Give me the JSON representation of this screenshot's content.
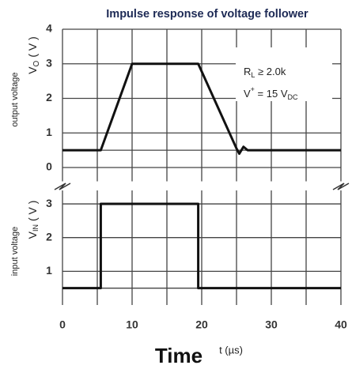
{
  "chart_data": [
    {
      "type": "line",
      "title": "Impulse response of voltage follower",
      "side_label": "output voltage",
      "ylabel": "V",
      "ylabel_sub": "O",
      "ylabel_unit": "( V )",
      "x": [
        0,
        5.5,
        10,
        19.5,
        25,
        25.4,
        26,
        26.6,
        40
      ],
      "series": [
        {
          "name": "output voltage",
          "color": "#111111",
          "values": [
            0.5,
            0.5,
            3,
            3,
            0.55,
            0.4,
            0.6,
            0.5,
            0.5
          ]
        }
      ],
      "xlim": [
        0,
        40
      ],
      "ylim": [
        -0.4,
        4
      ],
      "yticks": [
        0,
        1,
        2,
        3,
        4
      ],
      "yminor": [
        0.5
      ],
      "annotations": [
        {
          "main": "R",
          "sub": "L",
          "rest": " ≥ 2.0k"
        },
        {
          "main": "V",
          "sup": "+",
          "rest": " = 15 V",
          "sub": "DC"
        }
      ],
      "grid": true
    },
    {
      "type": "line",
      "side_label": "input voltage",
      "ylabel": "V",
      "ylabel_sub": "IN",
      "ylabel_unit": "( V )",
      "x": [
        0,
        5.5,
        5.5,
        19.5,
        19.5,
        40
      ],
      "series": [
        {
          "name": "input voltage",
          "color": "#111111",
          "values": [
            0.5,
            0.5,
            3,
            3,
            0.5,
            0.5
          ]
        }
      ],
      "xlim": [
        0,
        40
      ],
      "ylim": [
        0,
        3.4
      ],
      "yticks": [
        1,
        2,
        3
      ],
      "yminor": [
        0.5
      ],
      "xticks": [
        0,
        10,
        20,
        30,
        40
      ],
      "xminor": [
        5,
        15,
        25,
        35
      ],
      "xlabel": "Time",
      "xunit": "t (µs)",
      "grid": true
    }
  ]
}
